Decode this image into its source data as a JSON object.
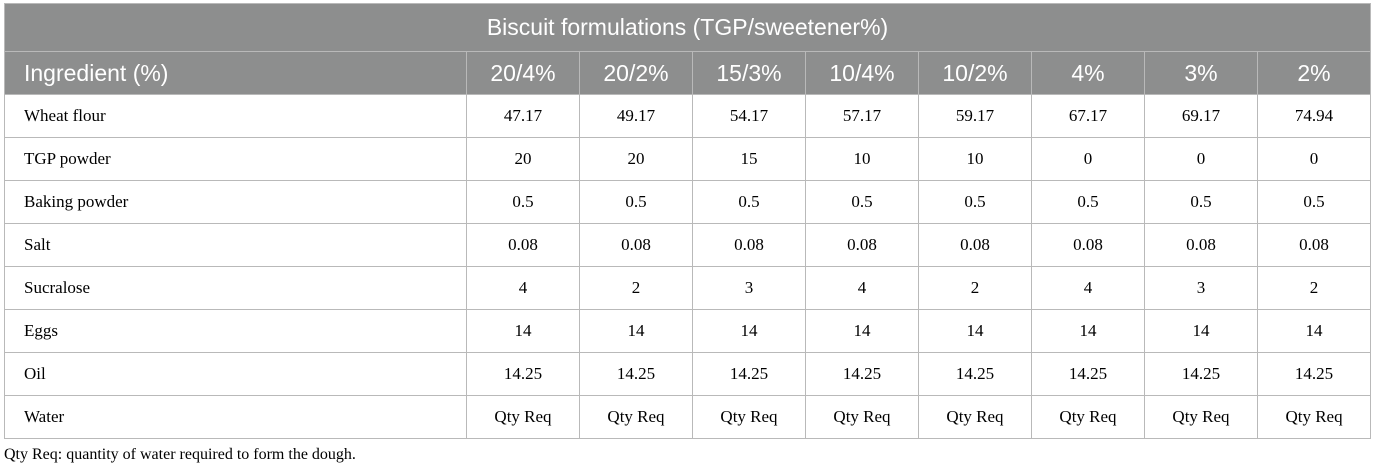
{
  "table": {
    "title": "Biscuit formulations (TGP/sweetener%)",
    "header_first": "Ingredient (%)",
    "columns": [
      "20/4%",
      "20/2%",
      "15/3%",
      "10/4%",
      "10/2%",
      "4%",
      "3%",
      "2%"
    ],
    "rows": [
      {
        "ingredient": "Wheat flour",
        "values": [
          "47.17",
          "49.17",
          "54.17",
          "57.17",
          "59.17",
          "67.17",
          "69.17",
          "74.94"
        ]
      },
      {
        "ingredient": "TGP powder",
        "values": [
          "20",
          "20",
          "15",
          "10",
          "10",
          "0",
          "0",
          "0"
        ]
      },
      {
        "ingredient": "Baking powder",
        "values": [
          "0.5",
          "0.5",
          "0.5",
          "0.5",
          "0.5",
          "0.5",
          "0.5",
          "0.5"
        ]
      },
      {
        "ingredient": "Salt",
        "values": [
          "0.08",
          "0.08",
          "0.08",
          "0.08",
          "0.08",
          "0.08",
          "0.08",
          "0.08"
        ]
      },
      {
        "ingredient": "Sucralose",
        "values": [
          "4",
          "2",
          "3",
          "4",
          "2",
          "4",
          "3",
          "2"
        ]
      },
      {
        "ingredient": "Eggs",
        "values": [
          "14",
          "14",
          "14",
          "14",
          "14",
          "14",
          "14",
          "14"
        ]
      },
      {
        "ingredient": "Oil",
        "values": [
          "14.25",
          "14.25",
          "14.25",
          "14.25",
          "14.25",
          "14.25",
          "14.25",
          "14.25"
        ]
      },
      {
        "ingredient": "Water",
        "values": [
          "Qty Req",
          "Qty Req",
          "Qty Req",
          "Qty Req",
          "Qty Req",
          "Qty Req",
          "Qty Req",
          "Qty Req"
        ]
      }
    ],
    "footnote": "Qty Req: quantity of water required to form the dough."
  }
}
